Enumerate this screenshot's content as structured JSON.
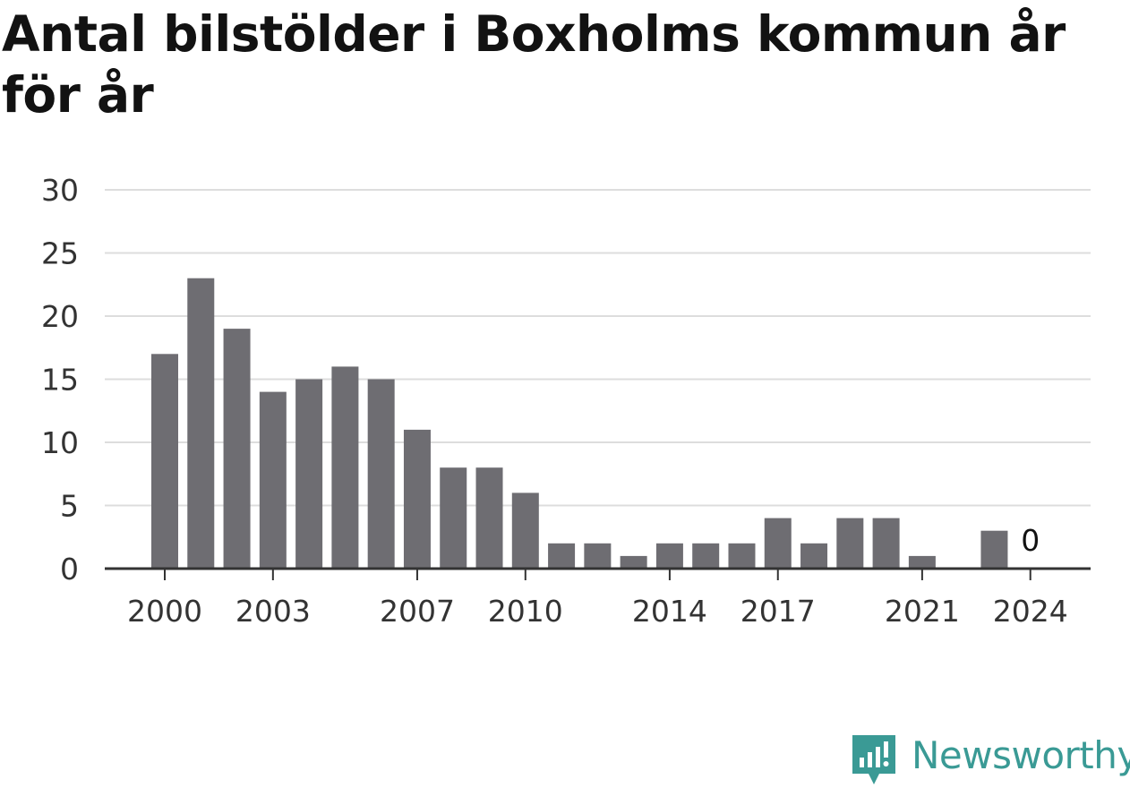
{
  "title": "Antal bilstölder i Boxholms kommun år för år",
  "brand": {
    "name": "Newsworthy",
    "color": "#3a9a95"
  },
  "chart_data": {
    "type": "bar",
    "categories": [
      "2000",
      "2001",
      "2002",
      "2003",
      "2004",
      "2005",
      "2006",
      "2007",
      "2008",
      "2009",
      "2010",
      "2011",
      "2012",
      "2013",
      "2014",
      "2015",
      "2016",
      "2017",
      "2018",
      "2019",
      "2020",
      "2021",
      "2022",
      "2023",
      "2024"
    ],
    "values": [
      17,
      23,
      19,
      14,
      15,
      16,
      15,
      11,
      8,
      8,
      6,
      2,
      2,
      1,
      2,
      2,
      2,
      4,
      2,
      4,
      4,
      1,
      0,
      3,
      0
    ],
    "x_tick_labels": [
      "2000",
      "2003",
      "2007",
      "2010",
      "2014",
      "2017",
      "2021",
      "2024"
    ],
    "y_ticks": [
      0,
      5,
      10,
      15,
      20,
      25,
      30
    ],
    "ylim": [
      0,
      30
    ],
    "annotations": [
      {
        "category": "2024",
        "text": "0"
      }
    ],
    "bar_color": "#6e6d72",
    "grid": true
  }
}
